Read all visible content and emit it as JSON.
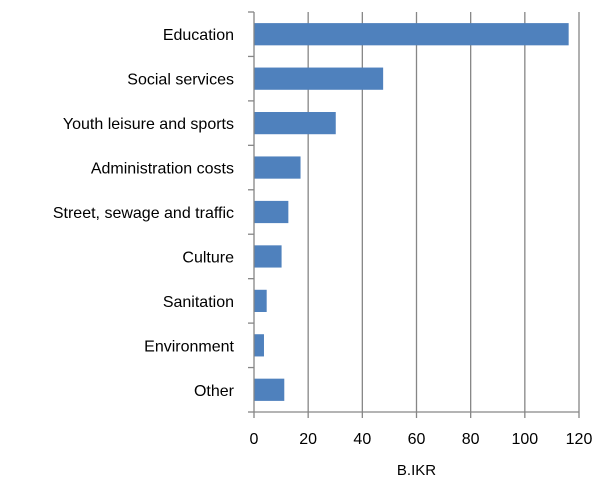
{
  "chart_data": {
    "type": "bar",
    "orientation": "horizontal",
    "categories": [
      "Education",
      "Social services",
      "Youth leisure and sports",
      "Administration costs",
      "Street, sewage and traffic",
      "Culture",
      "Sanitation",
      "Environment",
      "Other"
    ],
    "values": [
      116,
      47.5,
      30,
      17,
      12.5,
      10,
      4.5,
      3.5,
      11
    ],
    "xlabel": "B.IKR",
    "ylabel": "",
    "title": "",
    "xlim": [
      0,
      120
    ],
    "xticks": [
      0,
      20,
      40,
      60,
      80,
      100,
      120
    ],
    "grid": "vertical",
    "legend": "none",
    "colors": {
      "bar": "#4F81BD",
      "grid": "#868686",
      "axis": "#868686"
    }
  }
}
